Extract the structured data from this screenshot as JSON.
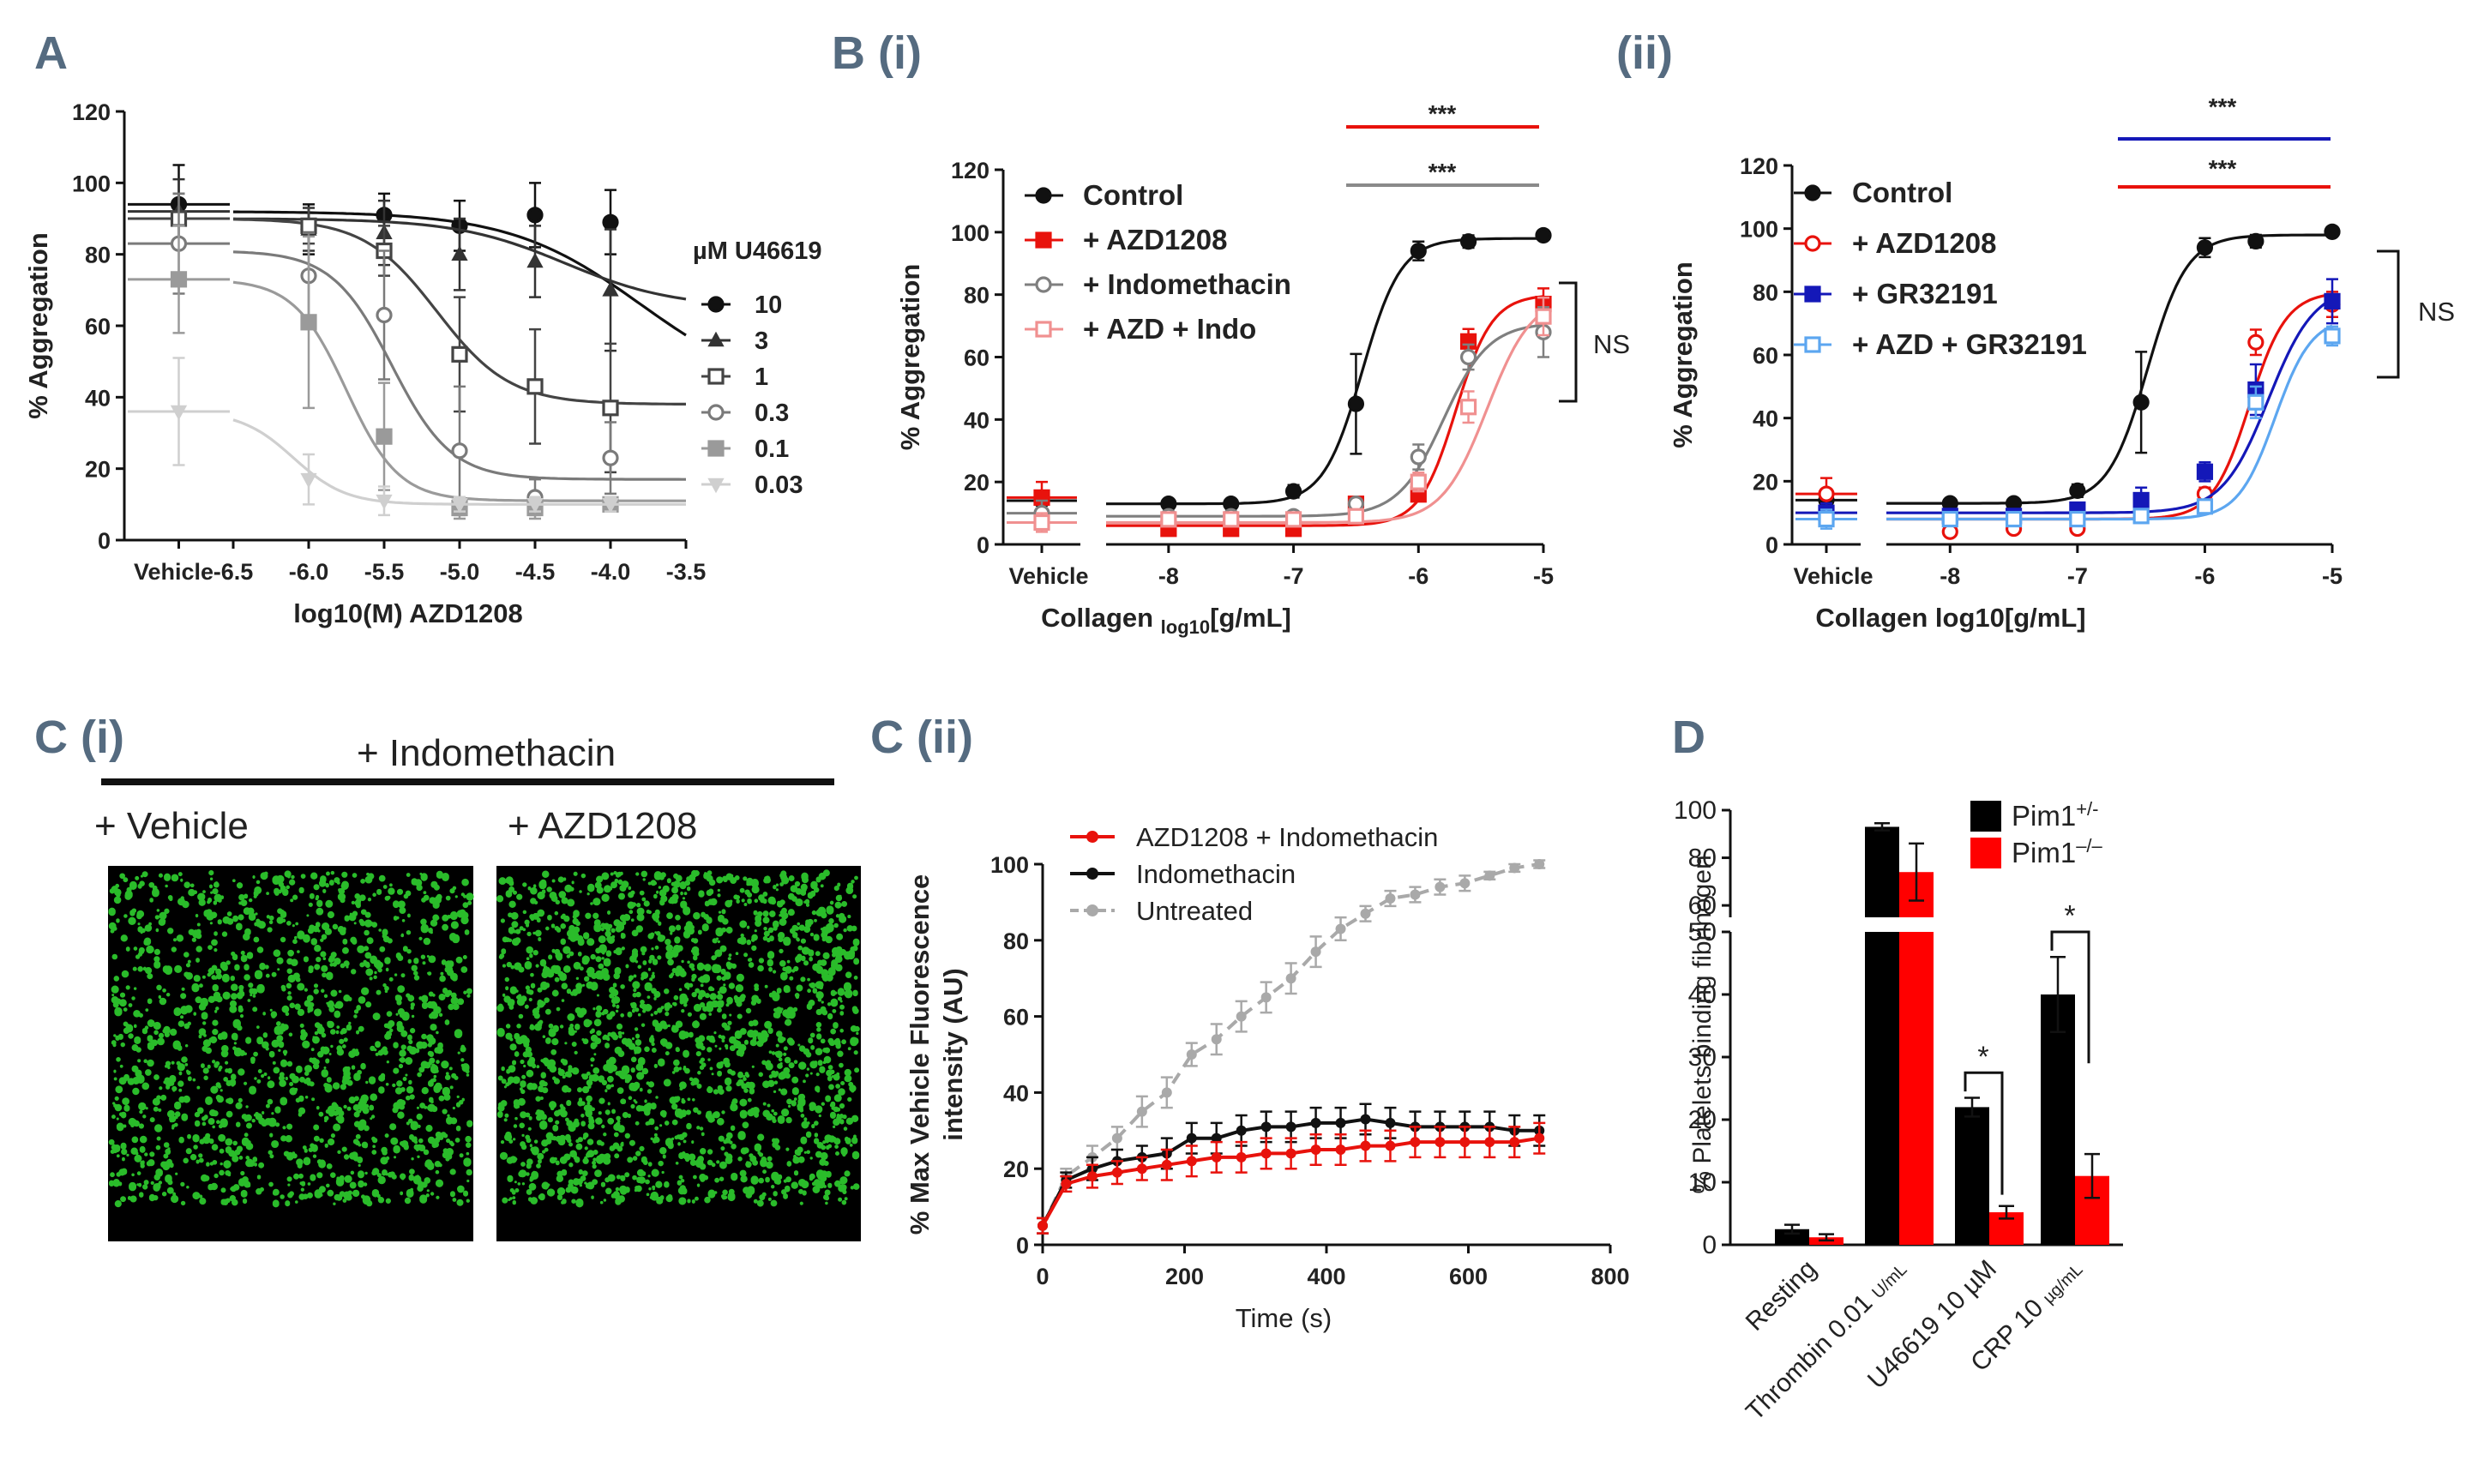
{
  "panels": {
    "A": {
      "label": "A"
    },
    "Bi": {
      "label": "B (i)"
    },
    "Bii": {
      "label": "(ii)"
    },
    "Ci": {
      "label": "C (i)",
      "header": "+ Indomethacin",
      "sub_left": "+  Vehicle",
      "sub_right": "+  AZD1208"
    },
    "Cii": {
      "label": "C (ii)"
    },
    "D": {
      "label": "D"
    }
  },
  "chart_data": [
    {
      "id": "A",
      "type": "line",
      "xlabel": "log10(M) AZD1208",
      "ylabel": "% Aggregation",
      "ylim": [
        0,
        120
      ],
      "xlim": [
        -6.5,
        -3.5
      ],
      "x_ticks": [
        "-6.5",
        "-6.0",
        "-5.5",
        "-5.0",
        "-4.5",
        "-4.0",
        "-3.5"
      ],
      "y_ticks": [
        "0",
        "20",
        "40",
        "60",
        "80",
        "100",
        "120"
      ],
      "vehicle_label": "Vehicle",
      "legend_title": "µM U46619",
      "x": [
        -6.0,
        -5.5,
        -5.0,
        -4.5,
        -4.0
      ],
      "series": [
        {
          "name": "10",
          "color": "#111111",
          "marker": "circle",
          "fill": true,
          "vehicle": 94,
          "vehicle_err": 11,
          "values": [
            87,
            91,
            88,
            91,
            89
          ],
          "errors": [
            7,
            6,
            7,
            9,
            9
          ],
          "fit": {
            "top": 92,
            "bottom": 40,
            "ic50": -3.8,
            "hill": 1
          }
        },
        {
          "name": "3",
          "color": "#333333",
          "marker": "triangle",
          "fill": true,
          "vehicle": 92,
          "vehicle_err": 9,
          "values": [
            87,
            86,
            80,
            78,
            70
          ],
          "errors": [
            6,
            9,
            10,
            10,
            17
          ],
          "fit": {
            "top": 90,
            "bottom": 65,
            "ic50": -4.3,
            "hill": 1.2
          }
        },
        {
          "name": "1",
          "color": "#444444",
          "marker": "square",
          "fill": false,
          "vehicle": 90,
          "vehicle_err": 7,
          "values": [
            88,
            81,
            52,
            43,
            37
          ],
          "errors": [
            5,
            7,
            16,
            16,
            18
          ],
          "fit": {
            "top": 90,
            "bottom": 38,
            "ic50": -5.15,
            "hill": 1.8
          }
        },
        {
          "name": "0.3",
          "color": "#7a7a7a",
          "marker": "circle",
          "fill": false,
          "vehicle": 83,
          "vehicle_err": 14,
          "values": [
            74,
            63,
            25,
            12,
            23
          ],
          "errors": [
            12,
            18,
            18,
            5,
            10
          ],
          "fit": {
            "top": 81,
            "bottom": 17,
            "ic50": -5.45,
            "hill": 2.2
          }
        },
        {
          "name": "0.1",
          "color": "#9a9a9a",
          "marker": "square",
          "fill": true,
          "vehicle": 73,
          "vehicle_err": 15,
          "values": [
            61,
            29,
            9,
            9,
            10
          ],
          "errors": [
            24,
            15,
            3,
            3,
            2
          ],
          "fit": {
            "top": 73,
            "bottom": 11,
            "ic50": -5.75,
            "hill": 2.5
          }
        },
        {
          "name": "0.03",
          "color": "#cfcfcf",
          "marker": "triangle-down",
          "fill": true,
          "vehicle": 36,
          "vehicle_err": 15,
          "values": [
            17,
            11,
            10,
            10,
            10
          ],
          "errors": [
            7,
            4,
            2,
            2,
            2
          ],
          "fit": {
            "top": 36,
            "bottom": 10,
            "ic50": -6.1,
            "hill": 2.5
          }
        }
      ]
    },
    {
      "id": "Bi",
      "type": "line",
      "xlabel": "Collagen log10[g/mL]",
      "xlabel_main": "Collagen ",
      "xlabel_sub": "log10",
      "xlabel_tail": "[g/mL]",
      "ylabel": "% Aggregation",
      "ylim": [
        0,
        120
      ],
      "xlim": [
        -8.5,
        -5
      ],
      "x_ticks": [
        "-8",
        "-7",
        "-6",
        "-5"
      ],
      "y_ticks": [
        "0",
        "20",
        "40",
        "60",
        "80",
        "100",
        "120"
      ],
      "vehicle_label": "Vehicle",
      "x": [
        -8,
        -7.5,
        -7,
        -6.5,
        -6,
        -5.6,
        -5.3,
        -5
      ],
      "annotations": [
        "***",
        "***",
        "NS"
      ],
      "series": [
        {
          "name": "Control",
          "color": "#111111",
          "marker": "circle",
          "fill": true,
          "vehicle": 14,
          "vehicle_err": 3,
          "values": [
            13,
            13,
            17,
            45,
            94,
            97,
            null,
            99
          ],
          "errors": [
            1,
            1,
            2,
            16,
            3,
            2,
            null,
            1
          ],
          "fit": {
            "top": 98,
            "bottom": 13,
            "ec50": -6.45,
            "hill": 2.8
          }
        },
        {
          "name": "+ AZD1208",
          "color": "#e8120c",
          "marker": "square",
          "fill": true,
          "vehicle": 15,
          "vehicle_err": 5,
          "values": [
            5,
            5,
            5,
            13,
            16,
            65,
            null,
            77
          ],
          "errors": [
            1,
            1,
            1,
            1,
            2,
            4,
            null,
            5
          ],
          "fit": {
            "top": 80,
            "bottom": 6,
            "ec50": -5.7,
            "hill": 3
          }
        },
        {
          "name": "+ Indomethacin",
          "color": "#7f7f7f",
          "marker": "circle",
          "fill": false,
          "vehicle": 10,
          "vehicle_err": 4,
          "values": [
            9,
            9,
            9,
            13,
            28,
            60,
            null,
            68
          ],
          "errors": [
            1,
            1,
            1,
            1,
            4,
            4,
            null,
            8
          ],
          "fit": {
            "top": 71,
            "bottom": 9,
            "ec50": -5.8,
            "hill": 2.4
          }
        },
        {
          "name": "+ AZD + Indo",
          "color": "#f09090",
          "marker": "square",
          "fill": false,
          "vehicle": 7,
          "vehicle_err": 3,
          "values": [
            8,
            8,
            8,
            9,
            20,
            44,
            null,
            73
          ],
          "errors": [
            1,
            1,
            1,
            1,
            3,
            5,
            null,
            6
          ],
          "fit": {
            "top": 80,
            "bottom": 7,
            "ec50": -5.45,
            "hill": 2.4
          }
        }
      ]
    },
    {
      "id": "Bii",
      "type": "line",
      "xlabel": "Collagen log10[g/mL]",
      "ylabel": "% Aggregation",
      "ylim": [
        0,
        120
      ],
      "xlim": [
        -8.5,
        -5
      ],
      "x_ticks": [
        "-8",
        "-7",
        "-6",
        "-5"
      ],
      "y_ticks": [
        "0",
        "20",
        "40",
        "60",
        "80",
        "100",
        "120"
      ],
      "vehicle_label": "Vehicle",
      "x": [
        -8,
        -7.5,
        -7,
        -6.5,
        -6,
        -5.6,
        -5.3,
        -5
      ],
      "annotations": [
        "***",
        "***",
        "NS"
      ],
      "series": [
        {
          "name": "Control",
          "color": "#111111",
          "marker": "circle",
          "fill": true,
          "vehicle": 14,
          "vehicle_err": 3,
          "values": [
            13,
            13,
            17,
            45,
            94,
            96,
            null,
            99
          ],
          "errors": [
            1,
            1,
            2,
            16,
            3,
            2,
            null,
            1
          ],
          "fit": {
            "top": 98,
            "bottom": 13,
            "ec50": -6.45,
            "hill": 2.8
          }
        },
        {
          "name": "+ AZD1208",
          "color": "#e8120c",
          "marker": "circle",
          "fill": false,
          "vehicle": 16,
          "vehicle_err": 5,
          "values": [
            4,
            5,
            5,
            11,
            16,
            64,
            null,
            76
          ],
          "errors": [
            1,
            1,
            1,
            1,
            2,
            4,
            null,
            4
          ],
          "fit": {
            "top": 80,
            "bottom": 8,
            "ec50": -5.65,
            "hill": 3
          }
        },
        {
          "name": "+ GR32191",
          "color": "#1418b8",
          "marker": "square",
          "fill": true,
          "vehicle": 10,
          "vehicle_err": 3,
          "values": [
            9,
            9,
            11,
            14,
            23,
            49,
            null,
            77
          ],
          "errors": [
            1,
            1,
            2,
            4,
            3,
            8,
            null,
            7
          ],
          "fit": {
            "top": 82,
            "bottom": 10,
            "ec50": -5.5,
            "hill": 2.4
          }
        },
        {
          "name": "+ AZD + GR32191",
          "color": "#5ca6f0",
          "marker": "square",
          "fill": false,
          "vehicle": 8,
          "vehicle_err": 3,
          "values": [
            8,
            8,
            8,
            9,
            12,
            45,
            null,
            66
          ],
          "errors": [
            1,
            1,
            1,
            2,
            2,
            5,
            null,
            3
          ],
          "fit": {
            "top": 72,
            "bottom": 8,
            "ec50": -5.45,
            "hill": 3
          }
        }
      ]
    },
    {
      "id": "Cii",
      "type": "line",
      "xlabel": "Time (s)",
      "ylabel": "% Max Vehicle Fluorescence intensity (AU)",
      "ylabel_lines": [
        "% Max Vehicle Fluorescence",
        "intensity (AU)"
      ],
      "ylim": [
        0,
        100
      ],
      "xlim": [
        0,
        800
      ],
      "x_ticks": [
        "0",
        "200",
        "400",
        "600",
        "800"
      ],
      "y_ticks": [
        "0",
        "20",
        "40",
        "60",
        "80",
        "100"
      ],
      "x": [
        0,
        33,
        70,
        105,
        140,
        175,
        210,
        245,
        280,
        315,
        350,
        385,
        420,
        455,
        490,
        525,
        560,
        595,
        630,
        665,
        700
      ],
      "series": [
        {
          "name": "AZD1208 + Indomethacin",
          "color": "#e8120c",
          "dashed": false,
          "values": [
            5,
            16,
            18,
            19,
            20,
            21,
            22,
            23,
            23,
            24,
            24,
            25,
            25,
            26,
            26,
            27,
            27,
            27,
            27,
            27,
            28
          ],
          "errors": [
            2,
            2,
            3,
            3,
            3,
            4,
            4,
            4,
            4,
            4,
            4,
            4,
            4,
            4,
            4,
            4,
            4,
            4,
            4,
            4,
            4
          ]
        },
        {
          "name": "Indomethacin",
          "color": "#111111",
          "dashed": false,
          "values": [
            5,
            17,
            20,
            22,
            23,
            24,
            28,
            28,
            30,
            31,
            31,
            32,
            32,
            33,
            32,
            31,
            31,
            31,
            31,
            30,
            30
          ],
          "errors": [
            2,
            2,
            3,
            3,
            3,
            4,
            4,
            4,
            4,
            4,
            4,
            4,
            4,
            4,
            4,
            4,
            4,
            4,
            4,
            4,
            4
          ]
        },
        {
          "name": "Untreated",
          "color": "#a9a9a9",
          "dashed": true,
          "values": [
            5,
            18,
            23,
            28,
            35,
            40,
            50,
            54,
            60,
            65,
            70,
            77,
            83,
            87,
            91,
            92,
            94,
            95,
            97,
            99,
            100
          ],
          "errors": [
            2,
            2,
            3,
            3,
            4,
            4,
            3,
            4,
            4,
            4,
            4,
            4,
            3,
            2,
            2,
            2,
            2,
            2,
            1,
            1,
            1
          ]
        }
      ]
    },
    {
      "id": "D",
      "type": "bar",
      "ylabel": "% Platelets binding fibrinogen",
      "categories": [
        "Resting",
        "Thrombin 0.01 U/mL",
        "U46619 10 µM",
        "CRP 10 µg/mL"
      ],
      "category_labels": [
        {
          "main": "Resting",
          "small": ""
        },
        {
          "main": "Thrombin 0.01 ",
          "small": "U/mL"
        },
        {
          "main": "U46619 10 µM",
          "small": ""
        },
        {
          "main": "CRP 10 ",
          "small": "µg/mL"
        }
      ],
      "y_ticks_lower": [
        "0",
        "10",
        "20",
        "30",
        "40",
        "50"
      ],
      "y_ticks_upper": [
        "60",
        "80",
        "100"
      ],
      "ylim_lower": [
        0,
        50
      ],
      "ylim_upper": [
        55,
        100
      ],
      "annotations": [
        "*",
        "*"
      ],
      "series": [
        {
          "name": "Pim1+/-",
          "legend_base": "Pim1",
          "legend_sup": "+/-",
          "color": "#000000",
          "values": [
            2.5,
            93,
            22,
            40
          ],
          "errors": [
            0.7,
            1.5,
            1.5,
            6
          ]
        },
        {
          "name": "Pim1-/-",
          "legend_base": "Pim1",
          "legend_sup": "–/–",
          "color": "#ff0000",
          "values": [
            1.2,
            74,
            5.2,
            11
          ],
          "errors": [
            0.5,
            12,
            1.0,
            3.5
          ]
        }
      ]
    }
  ]
}
